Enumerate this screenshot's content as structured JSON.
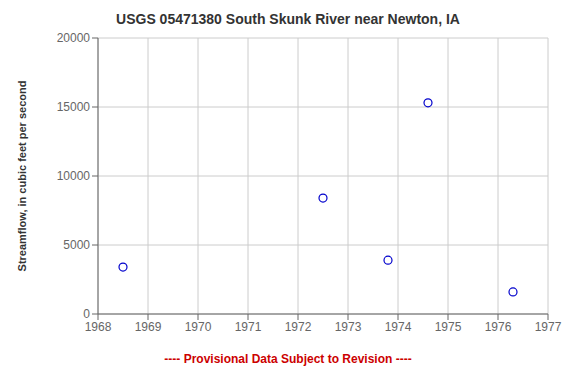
{
  "chart_data": {
    "type": "scatter",
    "title": "USGS 05471380 South Skunk River near Newton, IA",
    "ylabel": "Streamflow, in cubic feet per second",
    "x": [
      1968.5,
      1972.5,
      1973.8,
      1974.6,
      1976.3
    ],
    "values": [
      3400,
      8400,
      3900,
      15300,
      1600
    ],
    "color": "#0000cc",
    "marker": "circle",
    "xlim": [
      1968,
      1977
    ],
    "ylim": [
      0,
      20000
    ],
    "xticks": [
      1968,
      1969,
      1970,
      1971,
      1972,
      1973,
      1974,
      1975,
      1976,
      1977
    ],
    "yticks": [
      0,
      5000,
      10000,
      15000,
      20000
    ],
    "grid": true,
    "annotations": [
      {
        "text": "---- Provisional Data Subject to Revision ----",
        "color": "#cc0000"
      }
    ]
  }
}
